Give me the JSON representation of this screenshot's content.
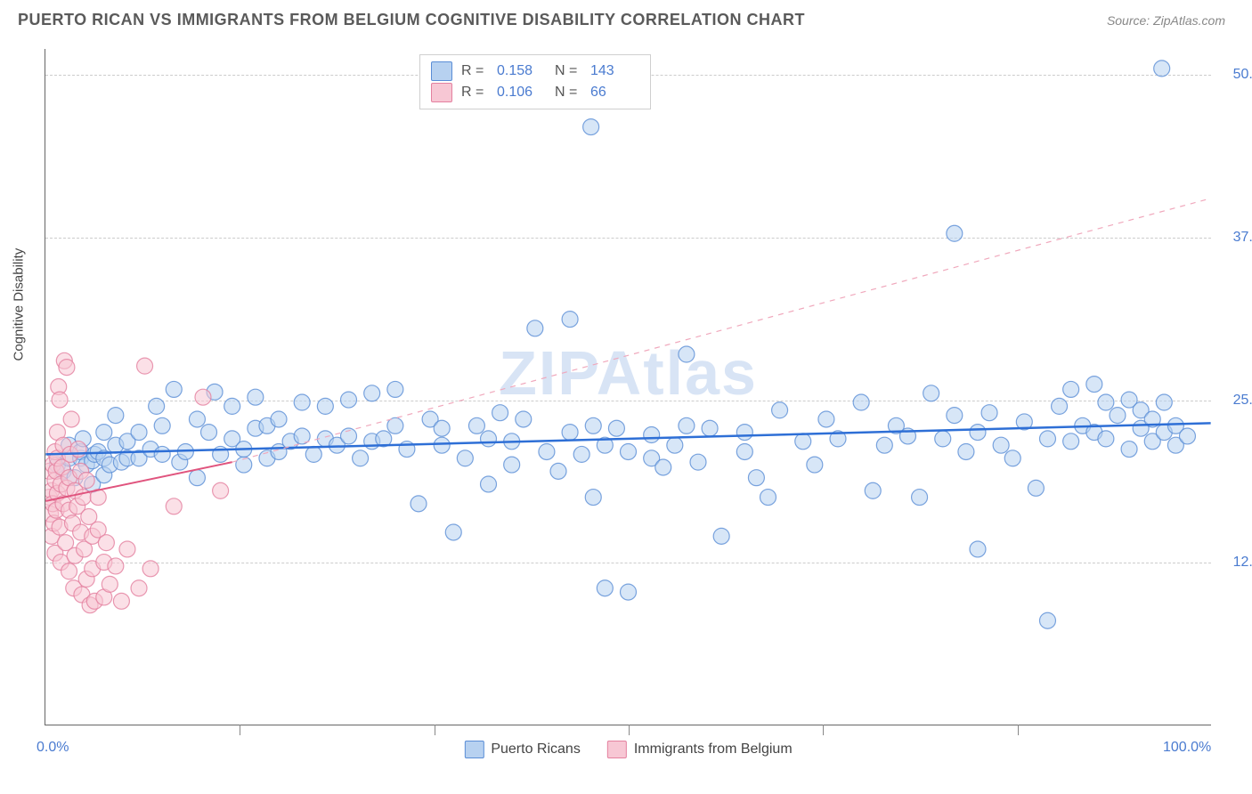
{
  "title": "PUERTO RICAN VS IMMIGRANTS FROM BELGIUM COGNITIVE DISABILITY CORRELATION CHART",
  "source_prefix": "Source: ",
  "source_name": "ZipAtlas.com",
  "watermark": "ZIPAtlas",
  "y_axis_title": "Cognitive Disability",
  "chart": {
    "type": "scatter",
    "xlim": [
      0,
      100
    ],
    "ylim": [
      0,
      52
    ],
    "x_ticks": [
      0,
      100
    ],
    "x_tick_labels": [
      "0.0%",
      "100.0%"
    ],
    "x_minor_ticks": [
      16.67,
      33.33,
      50,
      66.67,
      83.33
    ],
    "y_ticks": [
      12.5,
      25,
      37.5,
      50
    ],
    "y_tick_labels": [
      "12.5%",
      "25.0%",
      "37.5%",
      "50.0%"
    ],
    "background_color": "#ffffff",
    "grid_color": "#cccccc",
    "watermark_color": "#d8e4f5",
    "axis_label_color": "#4a7bd0",
    "axis_label_fontsize": 16,
    "title_color": "#5a5a5a",
    "title_fontsize": 18,
    "marker_radius": 9,
    "marker_opacity": 0.55,
    "series": [
      {
        "name": "Puerto Ricans",
        "color_fill": "#b7d1f0",
        "color_stroke": "#5a8dd6",
        "R": "0.158",
        "N": "143",
        "trend": {
          "x1": 0,
          "y1": 20.8,
          "x2": 100,
          "y2": 23.2,
          "color": "#2e6fd6",
          "width": 2.5,
          "solid": true
        },
        "trend_ext": null,
        "points": [
          [
            1,
            20
          ],
          [
            1.5,
            19.5
          ],
          [
            2,
            20.5
          ],
          [
            2,
            21.5
          ],
          [
            2.5,
            19
          ],
          [
            3,
            20.5
          ],
          [
            3,
            21
          ],
          [
            3.2,
            22
          ],
          [
            3.5,
            20
          ],
          [
            4,
            18.5
          ],
          [
            4,
            20.3
          ],
          [
            4.2,
            20.8
          ],
          [
            4.5,
            21
          ],
          [
            5,
            19.2
          ],
          [
            5,
            20.5
          ],
          [
            5,
            22.5
          ],
          [
            5.5,
            20
          ],
          [
            6,
            21.5
          ],
          [
            6,
            23.8
          ],
          [
            6.5,
            20.2
          ],
          [
            7,
            20.5
          ],
          [
            7,
            21.8
          ],
          [
            8,
            20.5
          ],
          [
            8,
            22.5
          ],
          [
            9,
            21.2
          ],
          [
            9.5,
            24.5
          ],
          [
            10,
            20.8
          ],
          [
            10,
            23
          ],
          [
            11,
            25.8
          ],
          [
            11.5,
            20.2
          ],
          [
            12,
            21
          ],
          [
            13,
            19
          ],
          [
            13,
            23.5
          ],
          [
            14,
            22.5
          ],
          [
            14.5,
            25.6
          ],
          [
            15,
            20.8
          ],
          [
            16,
            22
          ],
          [
            16,
            24.5
          ],
          [
            17,
            20
          ],
          [
            17,
            21.2
          ],
          [
            18,
            22.8
          ],
          [
            18,
            25.2
          ],
          [
            19,
            20.5
          ],
          [
            19,
            23
          ],
          [
            20,
            21
          ],
          [
            20,
            23.5
          ],
          [
            21,
            21.8
          ],
          [
            22,
            22.2
          ],
          [
            22,
            24.8
          ],
          [
            23,
            20.8
          ],
          [
            24,
            22
          ],
          [
            24,
            24.5
          ],
          [
            25,
            21.5
          ],
          [
            26,
            25
          ],
          [
            26,
            22.2
          ],
          [
            27,
            20.5
          ],
          [
            28,
            21.8
          ],
          [
            28,
            25.5
          ],
          [
            29,
            22
          ],
          [
            30,
            23
          ],
          [
            30,
            25.8
          ],
          [
            31,
            21.2
          ],
          [
            32,
            17
          ],
          [
            33,
            23.5
          ],
          [
            34,
            21.5
          ],
          [
            34,
            22.8
          ],
          [
            35,
            14.8
          ],
          [
            36,
            20.5
          ],
          [
            37,
            23
          ],
          [
            38,
            18.5
          ],
          [
            38,
            22
          ],
          [
            39,
            24
          ],
          [
            40,
            20
          ],
          [
            40,
            21.8
          ],
          [
            41,
            23.5
          ],
          [
            42,
            30.5
          ],
          [
            43,
            21
          ],
          [
            44,
            19.5
          ],
          [
            45,
            22.5
          ],
          [
            45,
            31.2
          ],
          [
            46,
            20.8
          ],
          [
            46.8,
            46
          ],
          [
            47,
            17.5
          ],
          [
            47,
            23
          ],
          [
            48,
            21.5
          ],
          [
            48,
            10.5
          ],
          [
            49,
            22.8
          ],
          [
            50,
            21
          ],
          [
            50,
            10.2
          ],
          [
            52,
            20.5
          ],
          [
            52,
            22.3
          ],
          [
            53,
            19.8
          ],
          [
            54,
            21.5
          ],
          [
            55,
            28.5
          ],
          [
            55,
            23
          ],
          [
            56,
            20.2
          ],
          [
            57,
            22.8
          ],
          [
            58,
            14.5
          ],
          [
            60,
            21
          ],
          [
            60,
            22.5
          ],
          [
            61,
            19
          ],
          [
            62,
            17.5
          ],
          [
            63,
            24.2
          ],
          [
            65,
            21.8
          ],
          [
            66,
            20
          ],
          [
            67,
            23.5
          ],
          [
            68,
            22
          ],
          [
            70,
            24.8
          ],
          [
            71,
            18
          ],
          [
            72,
            21.5
          ],
          [
            73,
            23
          ],
          [
            74,
            22.2
          ],
          [
            75,
            17.5
          ],
          [
            76,
            25.5
          ],
          [
            77,
            22
          ],
          [
            78,
            23.8
          ],
          [
            78,
            37.8
          ],
          [
            79,
            21
          ],
          [
            80,
            13.5
          ],
          [
            80,
            22.5
          ],
          [
            81,
            24
          ],
          [
            82,
            21.5
          ],
          [
            83,
            20.5
          ],
          [
            84,
            23.3
          ],
          [
            85,
            18.2
          ],
          [
            86,
            22
          ],
          [
            86,
            8
          ],
          [
            87,
            24.5
          ],
          [
            88,
            25.8
          ],
          [
            88,
            21.8
          ],
          [
            89,
            23
          ],
          [
            90,
            26.2
          ],
          [
            90,
            22.5
          ],
          [
            91,
            24.8
          ],
          [
            91,
            22
          ],
          [
            92,
            23.8
          ],
          [
            93,
            21.2
          ],
          [
            93,
            25
          ],
          [
            94,
            22.8
          ],
          [
            94,
            24.2
          ],
          [
            95,
            23.5
          ],
          [
            95,
            21.8
          ],
          [
            95.8,
            50.5
          ],
          [
            96,
            22.5
          ],
          [
            96,
            24.8
          ],
          [
            97,
            23
          ],
          [
            97,
            21.5
          ],
          [
            98,
            22.2
          ]
        ]
      },
      {
        "name": "Immigrants from Belgium",
        "color_fill": "#f7c7d4",
        "color_stroke": "#e4809f",
        "R": "0.106",
        "N": "66",
        "trend": {
          "x1": 0,
          "y1": 17.2,
          "x2": 16,
          "y2": 20.2,
          "color": "#e0547e",
          "width": 2,
          "solid": true
        },
        "trend_ext": {
          "x1": 16,
          "y1": 20.2,
          "x2": 100,
          "y2": 40.5,
          "color": "#f0a8bc",
          "width": 1.2,
          "solid": false
        },
        "points": [
          [
            0.3,
            17.5
          ],
          [
            0.3,
            19.5
          ],
          [
            0.4,
            16.2
          ],
          [
            0.5,
            18
          ],
          [
            0.5,
            14.5
          ],
          [
            0.6,
            20
          ],
          [
            0.6,
            17
          ],
          [
            0.7,
            15.5
          ],
          [
            0.8,
            18.8
          ],
          [
            0.8,
            21
          ],
          [
            0.8,
            13.2
          ],
          [
            0.9,
            19.5
          ],
          [
            0.9,
            16.5
          ],
          [
            1,
            17.8
          ],
          [
            1,
            20.5
          ],
          [
            1,
            22.5
          ],
          [
            1.1,
            26
          ],
          [
            1.2,
            25
          ],
          [
            1.2,
            15.2
          ],
          [
            1.3,
            18.5
          ],
          [
            1.3,
            12.5
          ],
          [
            1.4,
            19.8
          ],
          [
            1.5,
            17
          ],
          [
            1.5,
            21.5
          ],
          [
            1.6,
            28
          ],
          [
            1.7,
            14
          ],
          [
            1.8,
            18.2
          ],
          [
            1.8,
            27.5
          ],
          [
            2,
            11.8
          ],
          [
            2,
            16.5
          ],
          [
            2,
            19
          ],
          [
            2.1,
            20.8
          ],
          [
            2.2,
            23.5
          ],
          [
            2.3,
            15.5
          ],
          [
            2.4,
            10.5
          ],
          [
            2.5,
            18
          ],
          [
            2.5,
            13
          ],
          [
            2.7,
            16.8
          ],
          [
            2.8,
            21.2
          ],
          [
            3,
            19.5
          ],
          [
            3,
            14.8
          ],
          [
            3.1,
            10
          ],
          [
            3.2,
            17.5
          ],
          [
            3.3,
            13.5
          ],
          [
            3.5,
            18.8
          ],
          [
            3.5,
            11.2
          ],
          [
            3.7,
            16
          ],
          [
            3.8,
            9.2
          ],
          [
            4,
            14.5
          ],
          [
            4,
            12
          ],
          [
            4.2,
            9.5
          ],
          [
            4.5,
            15
          ],
          [
            4.5,
            17.5
          ],
          [
            5,
            12.5
          ],
          [
            5,
            9.8
          ],
          [
            5.2,
            14
          ],
          [
            5.5,
            10.8
          ],
          [
            6,
            12.2
          ],
          [
            6.5,
            9.5
          ],
          [
            7,
            13.5
          ],
          [
            8,
            10.5
          ],
          [
            8.5,
            27.6
          ],
          [
            9,
            12
          ],
          [
            11,
            16.8
          ],
          [
            13.5,
            25.2
          ],
          [
            15,
            18
          ]
        ]
      }
    ]
  },
  "legend_top": {
    "r_label": "R =",
    "n_label": "N ="
  },
  "legend_bottom": {
    "s1": "Puerto Ricans",
    "s2": "Immigrants from Belgium"
  }
}
